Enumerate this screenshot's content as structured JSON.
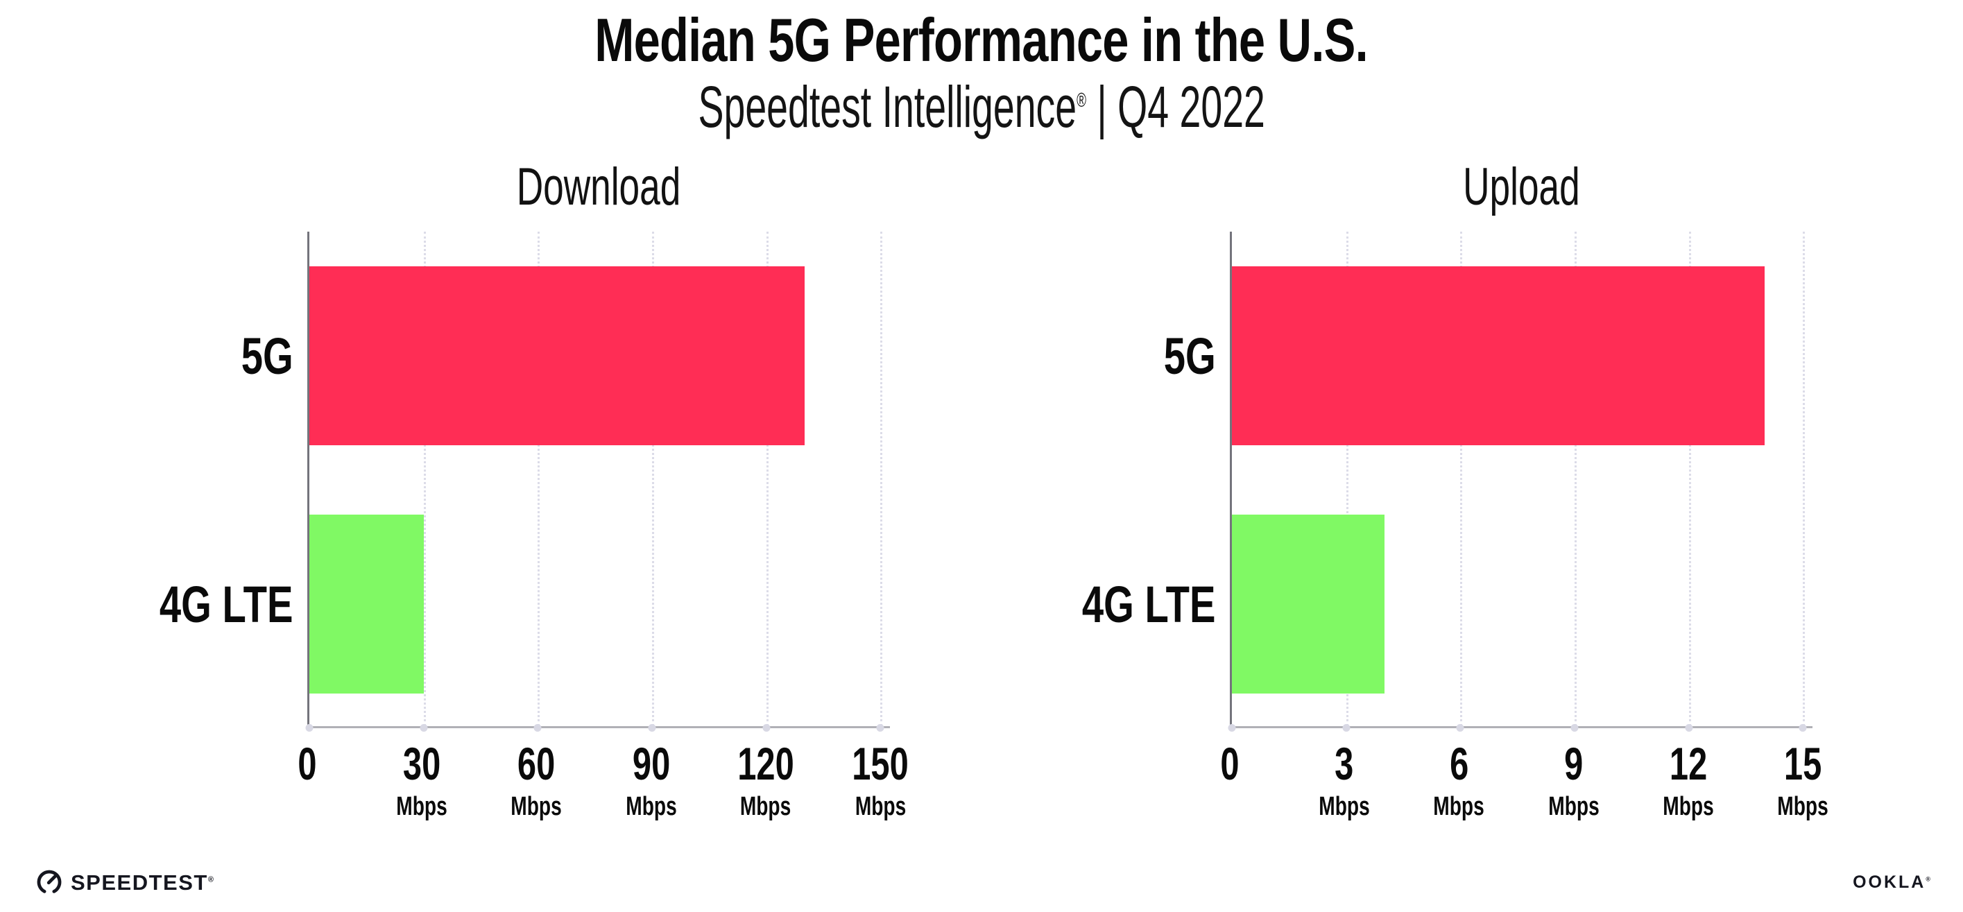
{
  "header": {
    "title": "Median 5G Performance in the U.S.",
    "subtitle_brand": "Speedtest Intelligence",
    "subtitle_registered": "®",
    "subtitle_rest": " | Q4 2022"
  },
  "chart_data": [
    {
      "type": "bar",
      "orientation": "horizontal",
      "title": "Download",
      "categories": [
        "5G",
        "4G LTE"
      ],
      "values": [
        130,
        30
      ],
      "colors": [
        "#ff2d55",
        "#80f964"
      ],
      "unit": "Mbps",
      "ticks": [
        0,
        30,
        60,
        90,
        120,
        150
      ],
      "xlim": [
        0,
        152.5
      ],
      "grid": "dotted-vertical",
      "legend": "none"
    },
    {
      "type": "bar",
      "orientation": "horizontal",
      "title": "Upload",
      "categories": [
        "5G",
        "4G LTE"
      ],
      "values": [
        14,
        4
      ],
      "colors": [
        "#ff2d55",
        "#80f964"
      ],
      "unit": "Mbps",
      "ticks": [
        0,
        3,
        6,
        9,
        12,
        15
      ],
      "xlim": [
        0,
        15.25
      ],
      "grid": "dotted-vertical",
      "legend": "none"
    }
  ],
  "footer": {
    "speedtest_label": "SPEEDTEST",
    "speedtest_registered": "®",
    "ookla_label": "OOKLA",
    "ookla_registered": "®"
  },
  "colors": {
    "bar_5g": "#ff2d55",
    "bar_4g_lte": "#80f964",
    "gridline": "#dcdce8",
    "axis_y": "#74747c",
    "axis_x": "#b0b0b6",
    "text": "#0a0a0a"
  }
}
